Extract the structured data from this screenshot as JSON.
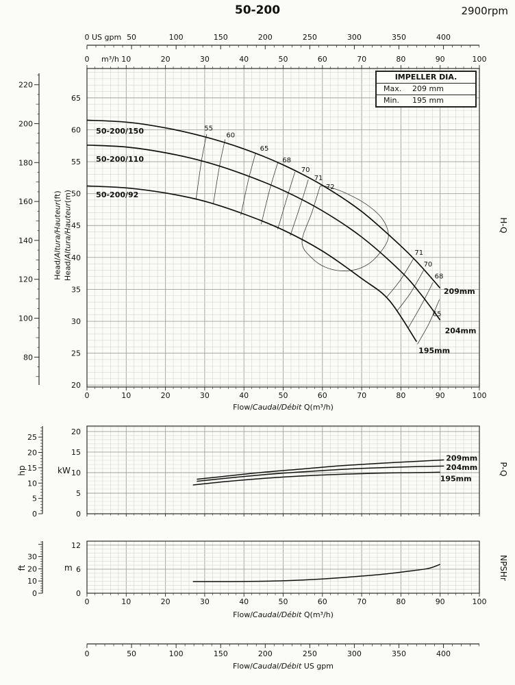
{
  "text": {
    "title": "50-200",
    "rpm": "2900rpm",
    "hq": "H-Q",
    "pq": "P-Q",
    "npshr": "NPSHr",
    "hp": "hp",
    "kw": "kW",
    "ft": "ft",
    "m": "m",
    "us_gpm": "US gpm",
    "m3h": "m³/h",
    "head_ft": {
      "pre": "Head/",
      "italic": "Altura/Hauteur",
      "post": "(ft)"
    },
    "head_m": {
      "pre": "Head/",
      "italic": "Altura/Hauteur",
      "post": "(m)"
    },
    "flow_label": {
      "pre": "Flow/",
      "italic": "Caudal/Débit",
      "post": " Q(m³/h)"
    },
    "flow_gpm_label": {
      "pre": "Flow/",
      "italic": "Caudal/Débit",
      "post": "  US gpm"
    }
  },
  "impeller_box": {
    "title": "IMPELLER DIA.",
    "rows": [
      {
        "label": "Max.",
        "value": "209 mm"
      },
      {
        "label": "Min.",
        "value": "195 mm"
      }
    ]
  },
  "bottom_axis": {
    "unit": "US gpm",
    "major_ticks": [
      0,
      50,
      100,
      150,
      200,
      250,
      300,
      350,
      400
    ],
    "max": 440.3
  },
  "chart_data": [
    {
      "id": "hq",
      "type": "line",
      "name": "H-Q",
      "xlabel": "Flow/Caudal/Débit Q(m³/h)",
      "x_axis": {
        "unit": "m³/h",
        "min": 0,
        "max": 100,
        "major_ticks": [
          0,
          10,
          20,
          30,
          40,
          50,
          60,
          70,
          80,
          90,
          100
        ],
        "minor_step": 2
      },
      "x_axis_top_gpm": {
        "unit": "US gpm",
        "min": 0,
        "max": 440.3,
        "major_ticks": [
          0,
          50,
          100,
          150,
          200,
          250,
          300,
          350,
          400
        ],
        "minor_step": 10
      },
      "y_axis_m": {
        "label": "Head/Altura/Hauteur(m)",
        "min": 19.7,
        "max": 69.6,
        "major_ticks": [
          20,
          25,
          30,
          35,
          40,
          45,
          50,
          55,
          60,
          65
        ]
      },
      "y_axis_ft": {
        "label": "Head/Altura/Hauteur(ft)",
        "major_ticks": [
          80,
          100,
          120,
          140,
          160,
          180,
          200,
          220
        ]
      },
      "series": [
        {
          "name": "50-200/150",
          "impeller": "209mm",
          "points": [
            [
              0,
              61.5
            ],
            [
              10,
              61.2
            ],
            [
              20,
              60.3
            ],
            [
              30,
              58.9
            ],
            [
              40,
              57.0
            ],
            [
              50,
              54.5
            ],
            [
              60,
              51.3
            ],
            [
              70,
              47.2
            ],
            [
              80,
              41.8
            ],
            [
              85,
              38.7
            ],
            [
              90,
              35.2
            ]
          ]
        },
        {
          "name": "50-200/110",
          "impeller": "204mm",
          "points": [
            [
              0,
              57.6
            ],
            [
              10,
              57.3
            ],
            [
              20,
              56.4
            ],
            [
              30,
              55.0
            ],
            [
              40,
              53.0
            ],
            [
              50,
              50.5
            ],
            [
              60,
              47.3
            ],
            [
              70,
              43.2
            ],
            [
              80,
              37.8
            ],
            [
              85,
              34.3
            ],
            [
              90,
              30.2
            ]
          ]
        },
        {
          "name": "50-200/92",
          "impeller": "195mm",
          "points": [
            [
              0,
              51.2
            ],
            [
              10,
              50.9
            ],
            [
              20,
              50.1
            ],
            [
              30,
              48.8
            ],
            [
              40,
              46.8
            ],
            [
              50,
              44.3
            ],
            [
              60,
              41.0
            ],
            [
              70,
              36.7
            ],
            [
              77,
              33.3
            ],
            [
              84,
              26.8
            ]
          ]
        }
      ],
      "series_labels": [
        {
          "text": "50-200/150",
          "q": 2.3,
          "m": 59.4
        },
        {
          "text": "50-200/110",
          "q": 2.3,
          "m": 55.0
        },
        {
          "text": "50-200/92",
          "q": 2.3,
          "m": 49.4
        },
        {
          "text": "209mm",
          "q": 90.9,
          "m": 34.3
        },
        {
          "text": "204mm",
          "q": 91.2,
          "m": 28.1
        },
        {
          "text": "195mm",
          "q": 84.5,
          "m": 25.0
        }
      ],
      "efficiency_contours": [
        {
          "label": "55",
          "label_q": 31.0,
          "label_m": 59.9,
          "points": [
            [
              30.5,
              59.3
            ],
            [
              29.2,
              55.2
            ],
            [
              27.8,
              49.1
            ]
          ]
        },
        {
          "label": "60",
          "label_q": 36.6,
          "label_m": 58.8,
          "points": [
            [
              35.2,
              58.5
            ],
            [
              33.8,
              54.4
            ],
            [
              32.2,
              48.4
            ]
          ]
        },
        {
          "label": "65",
          "label_q": 45.2,
          "label_m": 56.7,
          "points": [
            [
              43.0,
              56.4
            ],
            [
              41.2,
              52.3
            ],
            [
              39.2,
              46.6
            ]
          ]
        },
        {
          "label": "68",
          "label_q": 50.9,
          "label_m": 54.9,
          "points": [
            [
              48.6,
              54.8
            ],
            [
              46.6,
              50.7
            ],
            [
              44.4,
              45.2
            ]
          ]
        },
        {
          "label": "70",
          "label_q": 55.7,
          "label_m": 53.4,
          "points": [
            [
              53.0,
              53.4
            ],
            [
              51.0,
              49.4
            ],
            [
              48.6,
              44.4
            ]
          ]
        },
        {
          "label": "71",
          "label_q": 59.0,
          "label_m": 52.1,
          "points": [
            [
              56.4,
              52.2
            ],
            [
              54.4,
              48.2
            ],
            [
              51.8,
              43.4
            ]
          ]
        },
        {
          "label": "72",
          "label_q": 62.0,
          "label_m": 50.7,
          "points": [
            [
              59.4,
              51.2
            ],
            [
              57.4,
              47.2
            ],
            [
              54.8,
              42.4
            ],
            [
              57.5,
              39.8
            ],
            [
              61.5,
              38.3
            ],
            [
              66.5,
              37.9
            ],
            [
              71.0,
              38.7
            ],
            [
              74.5,
              40.6
            ],
            [
              76.8,
              43.2
            ],
            [
              75.3,
              46.0
            ],
            [
              71.0,
              48.4
            ],
            [
              65.5,
              50.2
            ],
            [
              61.2,
              51.1
            ],
            [
              59.4,
              51.2
            ]
          ]
        },
        {
          "label": "71",
          "label_q": 84.6,
          "label_m": 40.4,
          "points": [
            [
              83.2,
              39.8
            ],
            [
              79.8,
              36.4
            ],
            [
              76.4,
              33.8
            ]
          ]
        },
        {
          "label": "70",
          "label_q": 86.9,
          "label_m": 38.6,
          "points": [
            [
              85.8,
              38.0
            ],
            [
              82.4,
              34.4
            ],
            [
              79.0,
              31.6
            ]
          ]
        },
        {
          "label": "68",
          "label_q": 89.7,
          "label_m": 36.7,
          "points": [
            [
              88.2,
              36.1
            ],
            [
              85.0,
              32.3
            ],
            [
              81.8,
              28.9
            ]
          ]
        },
        {
          "label": "65",
          "label_q": 89.2,
          "label_m": 30.8,
          "points": [
            [
              89.8,
              33.4
            ],
            [
              87.2,
              29.7
            ],
            [
              84.2,
              26.4
            ]
          ]
        }
      ]
    },
    {
      "id": "pq",
      "type": "line",
      "name": "P-Q",
      "y_axis_kw": {
        "label": "kW",
        "min": 0,
        "max": 21.33,
        "major_ticks": [
          0,
          5,
          10,
          15,
          20
        ]
      },
      "y_axis_hp": {
        "label": "hp",
        "major_ticks": [
          0,
          5,
          10,
          15,
          20,
          25
        ]
      },
      "series": [
        {
          "name": "209mm",
          "label_q": 91.5,
          "label_kw": 13.6,
          "points": [
            [
              28,
              8.4
            ],
            [
              35,
              9.1
            ],
            [
              45,
              10.1
            ],
            [
              55,
              10.9
            ],
            [
              65,
              11.7
            ],
            [
              75,
              12.3
            ],
            [
              85,
              12.8
            ],
            [
              91,
              13.1
            ]
          ]
        },
        {
          "name": "204mm",
          "label_q": 91.5,
          "label_kw": 11.3,
          "points": [
            [
              28,
              7.9
            ],
            [
              35,
              8.6
            ],
            [
              45,
              9.5
            ],
            [
              55,
              10.2
            ],
            [
              65,
              10.8
            ],
            [
              75,
              11.2
            ],
            [
              85,
              11.5
            ],
            [
              91,
              11.6
            ]
          ]
        },
        {
          "name": "195mm",
          "label_q": 90.0,
          "label_kw": 8.6,
          "points": [
            [
              27,
              7.0
            ],
            [
              35,
              7.8
            ],
            [
              45,
              8.6
            ],
            [
              55,
              9.2
            ],
            [
              65,
              9.6
            ],
            [
              75,
              9.9
            ],
            [
              83,
              10.0
            ],
            [
              90,
              10.1
            ]
          ]
        }
      ]
    },
    {
      "id": "np",
      "type": "line",
      "name": "NPSHr",
      "xlabel": "Flow/Caudal/Débit Q(m³/h)",
      "x_axis": {
        "unit": "m³/h",
        "min": 0,
        "max": 100,
        "major_ticks": [
          0,
          10,
          20,
          30,
          40,
          50,
          60,
          70,
          80,
          90,
          100
        ],
        "minor_step": 2
      },
      "y_axis_m": {
        "label": "m",
        "min": 0,
        "max": 13,
        "major_ticks": [
          0,
          6,
          12
        ]
      },
      "y_axis_ft": {
        "label": "ft",
        "major_ticks": [
          0,
          10,
          20,
          30
        ]
      },
      "series": [
        {
          "name": "NPSHr",
          "points": [
            [
              27,
              2.9
            ],
            [
              35,
              2.9
            ],
            [
              45,
              3.0
            ],
            [
              55,
              3.3
            ],
            [
              65,
              3.9
            ],
            [
              75,
              4.7
            ],
            [
              82,
              5.5
            ],
            [
              87,
              6.2
            ],
            [
              90,
              7.2
            ]
          ]
        }
      ]
    }
  ]
}
